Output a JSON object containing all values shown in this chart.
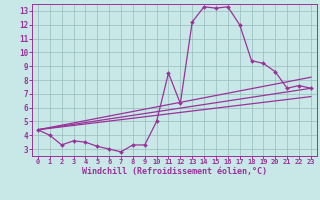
{
  "xlabel": "Windchill (Refroidissement éolien,°C)",
  "xlim": [
    -0.5,
    23.5
  ],
  "ylim": [
    2.5,
    13.5
  ],
  "xticks": [
    0,
    1,
    2,
    3,
    4,
    5,
    6,
    7,
    8,
    9,
    10,
    11,
    12,
    13,
    14,
    15,
    16,
    17,
    18,
    19,
    20,
    21,
    22,
    23
  ],
  "yticks": [
    3,
    4,
    5,
    6,
    7,
    8,
    9,
    10,
    11,
    12,
    13
  ],
  "bg_color": "#c8e8e8",
  "line_color": "#993399",
  "grid_color": "#99bbbb",
  "series": [
    {
      "x": [
        0,
        1,
        2,
        3,
        4,
        5,
        6,
        7,
        8,
        9,
        10,
        11,
        12,
        13,
        14,
        15,
        16,
        17,
        18,
        19,
        20,
        21,
        22,
        23
      ],
      "y": [
        4.4,
        4.0,
        3.3,
        3.6,
        3.5,
        3.2,
        3.0,
        2.8,
        3.3,
        3.3,
        5.0,
        8.5,
        6.3,
        12.2,
        13.3,
        13.2,
        13.3,
        12.0,
        9.4,
        9.2,
        8.6,
        7.4,
        7.6,
        7.4
      ],
      "has_markers": true
    },
    {
      "x": [
        0,
        23
      ],
      "y": [
        4.4,
        6.8
      ],
      "has_markers": false
    },
    {
      "x": [
        0,
        23
      ],
      "y": [
        4.4,
        7.4
      ],
      "has_markers": false
    },
    {
      "x": [
        0,
        23
      ],
      "y": [
        4.4,
        8.2
      ],
      "has_markers": false
    }
  ]
}
